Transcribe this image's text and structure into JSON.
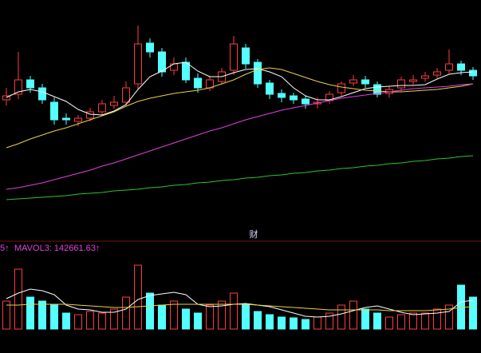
{
  "chart_data": {
    "type": "candlestick",
    "annotation": "财",
    "up_color": "#ff3c3c",
    "down_color": "#54ffff",
    "open": [
      175,
      182,
      200,
      190,
      172,
      152,
      148,
      152,
      160,
      168,
      172,
      195,
      246,
      235,
      212,
      222,
      202,
      190,
      198,
      212,
      240,
      222,
      196,
      183,
      180,
      176,
      170,
      174,
      184,
      196,
      200,
      194,
      183,
      190,
      198,
      202,
      206,
      212,
      220,
      212
    ],
    "high": [
      190,
      235,
      205,
      195,
      178,
      158,
      156,
      165,
      175,
      180,
      198,
      268,
      252,
      240,
      228,
      228,
      208,
      205,
      215,
      255,
      245,
      226,
      200,
      188,
      184,
      180,
      178,
      186,
      198,
      206,
      205,
      198,
      192,
      204,
      206,
      210,
      215,
      238,
      224,
      216
    ],
    "low": [
      168,
      176,
      184,
      170,
      144,
      144,
      142,
      148,
      156,
      164,
      168,
      188,
      228,
      204,
      206,
      196,
      184,
      186,
      194,
      206,
      214,
      190,
      176,
      172,
      170,
      164,
      164,
      170,
      180,
      192,
      190,
      178,
      178,
      186,
      194,
      198,
      202,
      208,
      206,
      200
    ],
    "close": [
      180,
      200,
      190,
      175,
      150,
      150,
      152,
      160,
      170,
      172,
      190,
      245,
      235,
      210,
      220,
      200,
      190,
      200,
      210,
      245,
      220,
      195,
      182,
      178,
      175,
      170,
      172,
      182,
      195,
      200,
      195,
      182,
      188,
      200,
      200,
      205,
      210,
      220,
      212,
      205
    ],
    "lines": [
      {
        "color": "#ffffff",
        "values": [
          178,
          185,
          188,
          185,
          179,
          173,
          163,
          157,
          156,
          161,
          169,
          188,
          204,
          211,
          220,
          222,
          211,
          204,
          204,
          209,
          213,
          214,
          210,
          204,
          190,
          180,
          175,
          175,
          179,
          184,
          189,
          191,
          192,
          193,
          193,
          194,
          201,
          207,
          209,
          210
        ]
      },
      {
        "color": "#e8d24a",
        "values": [
          115,
          120,
          126,
          131,
          136,
          140,
          145,
          150,
          155,
          160,
          167,
          173,
          177,
          180,
          183,
          185,
          187,
          190,
          195,
          200,
          207,
          213,
          215,
          213,
          208,
          203,
          198,
          194,
          191,
          189,
          187,
          186,
          185,
          185,
          186,
          187,
          188,
          190,
          192,
          195
        ]
      },
      {
        "color": "#e040e0",
        "values": [
          63,
          65,
          68,
          71,
          75,
          79,
          83,
          87,
          92,
          96,
          101,
          106,
          111,
          116,
          121,
          126,
          131,
          136,
          140,
          145,
          150,
          154,
          158,
          162,
          165,
          168,
          171,
          174,
          177,
          179,
          181,
          183,
          185,
          187,
          189,
          190,
          191,
          192,
          194,
          195
        ]
      },
      {
        "color": "#2ec42e",
        "values": [
          50,
          51,
          52,
          53,
          54,
          55,
          57,
          58,
          59,
          61,
          62,
          63,
          65,
          66,
          68,
          69,
          71,
          72,
          74,
          75,
          77,
          78,
          80,
          81,
          83,
          84,
          86,
          87,
          89,
          90,
          92,
          93,
          95,
          96,
          98,
          99,
          101,
          102,
          104,
          105
        ]
      }
    ],
    "volume": {
      "left_label": "5↑",
      "label": "MAVOL3: 142661.63↑",
      "label_color": "#e040e0",
      "values": [
        35,
        75,
        40,
        35,
        30,
        20,
        18,
        22,
        20,
        25,
        40,
        80,
        45,
        30,
        35,
        25,
        20,
        30,
        35,
        45,
        30,
        22,
        18,
        15,
        14,
        12,
        15,
        20,
        30,
        35,
        25,
        20,
        15,
        18,
        20,
        20,
        25,
        30,
        55,
        40
      ],
      "lines": [
        {
          "color": "#ffffff",
          "values": [
            38,
            45,
            50,
            48,
            43,
            30,
            25,
            24,
            21,
            21,
            25,
            37,
            42,
            44,
            46,
            43,
            31,
            28,
            29,
            31,
            32,
            30,
            28,
            24,
            20,
            16,
            15,
            16,
            19,
            23,
            27,
            29,
            25,
            21,
            18,
            19,
            20,
            22,
            34,
            36
          ]
        },
        {
          "color": "#e8d24a",
          "values": [
            30,
            30,
            31,
            31,
            31,
            31,
            30,
            29,
            28,
            27,
            27,
            28,
            29,
            30,
            31,
            31,
            31,
            31,
            31,
            31,
            31,
            30,
            29,
            28,
            27,
            26,
            25,
            24,
            24,
            24,
            24,
            24,
            23,
            23,
            23,
            23,
            24,
            25,
            27,
            28
          ]
        }
      ]
    }
  }
}
